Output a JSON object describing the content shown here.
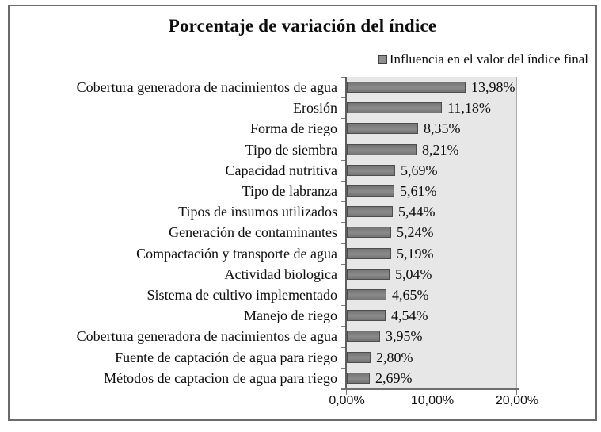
{
  "chart_data": {
    "type": "bar",
    "orientation": "horizontal",
    "title": "Porcentaje de variación del índice",
    "legend": "Influencia en el valor del índice final",
    "categories": [
      "Cobertura generadora de nacimientos de agua",
      "Erosión",
      "Forma de riego",
      "Tipo de siembra",
      "Capacidad nutritiva",
      "Tipo de labranza",
      "Tipos de insumos utilizados",
      "Generación de contaminantes",
      "Compactación y transporte de agua",
      "Actividad biologica",
      "Sistema de cultivo implementado",
      "Manejo de riego",
      "Cobertura generadora de nacimientos de agua",
      "Fuente de captación de agua para riego",
      "Métodos de captacion de agua para riego"
    ],
    "values": [
      13.98,
      11.18,
      8.35,
      8.21,
      5.69,
      5.61,
      5.44,
      5.24,
      5.19,
      5.04,
      4.65,
      4.54,
      3.95,
      2.8,
      2.69
    ],
    "value_labels": [
      "13,98%",
      "11,18%",
      "8,35%",
      "8,21%",
      "5,69%",
      "5,61%",
      "5,44%",
      "5,24%",
      "5,19%",
      "5,04%",
      "4,65%",
      "4,54%",
      "3,95%",
      "2,80%",
      "2,69%"
    ],
    "x_tick_labels": [
      "0,00%",
      "10,00%",
      "20,00%"
    ],
    "xlim": [
      0,
      20
    ],
    "grid": "vertical-at-10",
    "legend_position": "top-right",
    "colors": {
      "bar_fill": "#7f7f7f",
      "bar_border": "#4d4d4d",
      "plot_background": "#e7e7e7",
      "gridline": "#a9a9a9",
      "axis": "#5e5e5e",
      "frame_border": "#6a6a6a",
      "text": "#0d0d0d"
    }
  }
}
